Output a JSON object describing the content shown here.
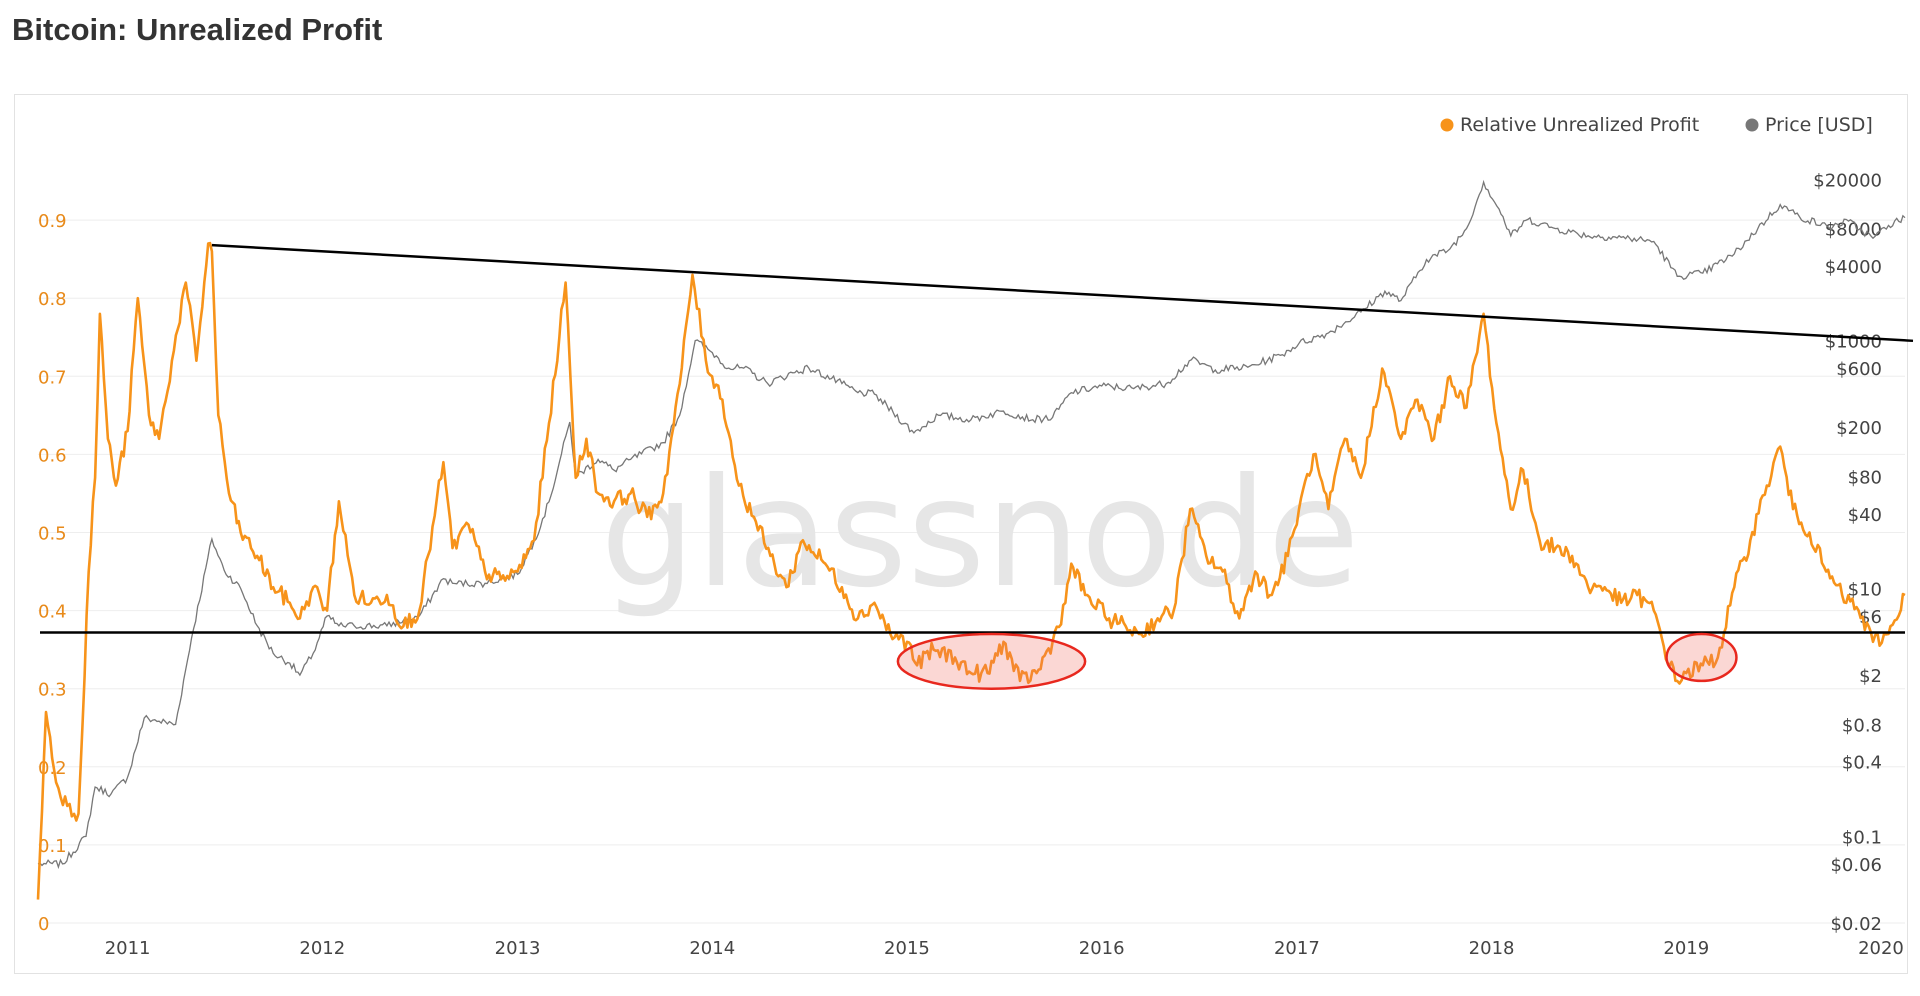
{
  "page": {
    "title": "Bitcoin: Unrealized Profit"
  },
  "watermark": "glassnode",
  "colors": {
    "profit": "#f7931a",
    "price": "#777777",
    "trend": "#000000",
    "highlight": "#e8281e"
  },
  "chart_data": {
    "type": "line",
    "title": "Bitcoin: Unrealized Profit",
    "legend_position": "top-right",
    "grid": true,
    "x_range": [
      "2010-07-17",
      "2020-02-15"
    ],
    "x_ticks": [
      "2011",
      "2012",
      "2013",
      "2014",
      "2015",
      "2016",
      "2017",
      "2018",
      "2019",
      "2020"
    ],
    "y_left": {
      "range": [
        0,
        1.0
      ],
      "ticks": [
        "0",
        "0.1",
        "0.2",
        "0.3",
        "0.4",
        "0.5",
        "0.6",
        "0.7",
        "0.8",
        "0.9"
      ]
    },
    "y_right": {
      "scale": "log",
      "range": [
        0.02,
        40000
      ],
      "ticks": [
        "$0.02",
        "$0.06",
        "$0.1",
        "$0.4",
        "$0.8",
        "$2",
        "$6",
        "$10",
        "$40",
        "$80",
        "$200",
        "$600",
        "$1000",
        "$4000",
        "$8000",
        "$20000"
      ]
    },
    "series": [
      {
        "name": "Relative Unrealized Profit",
        "axis": "left",
        "x": [
          "2010-07-17",
          "2010-08-01",
          "2010-08-20",
          "2010-09-10",
          "2010-10-01",
          "2010-10-20",
          "2010-11-01",
          "2010-11-10",
          "2010-11-25",
          "2010-12-10",
          "2011-01-01",
          "2011-01-20",
          "2011-02-10",
          "2011-03-01",
          "2011-03-25",
          "2011-04-20",
          "2011-05-10",
          "2011-06-01",
          "2011-06-08",
          "2011-06-20",
          "2011-07-10",
          "2011-08-01",
          "2011-09-01",
          "2011-10-01",
          "2011-11-01",
          "2011-11-20",
          "2011-12-15",
          "2012-01-10",
          "2012-02-01",
          "2012-03-01",
          "2012-04-01",
          "2012-05-01",
          "2012-06-01",
          "2012-07-01",
          "2012-08-15",
          "2012-09-01",
          "2012-10-01",
          "2012-11-01",
          "2012-12-01",
          "2013-01-01",
          "2013-02-01",
          "2013-03-01",
          "2013-04-01",
          "2013-04-10",
          "2013-04-20",
          "2013-05-10",
          "2013-06-01",
          "2013-07-01",
          "2013-08-01",
          "2013-09-01",
          "2013-10-01",
          "2013-11-01",
          "2013-11-25",
          "2013-12-20",
          "2014-01-20",
          "2014-02-20",
          "2014-03-20",
          "2014-04-20",
          "2014-05-20",
          "2014-06-20",
          "2014-08-01",
          "2014-09-01",
          "2014-10-01",
          "2014-11-01",
          "2014-12-01",
          "2015-01-01",
          "2015-01-20",
          "2015-02-20",
          "2015-04-01",
          "2015-05-01",
          "2015-06-01",
          "2015-07-01",
          "2015-08-01",
          "2015-09-01",
          "2015-10-01",
          "2015-10-25",
          "2015-11-05",
          "2015-12-01",
          "2016-01-15",
          "2016-02-15",
          "2016-03-15",
          "2016-04-15",
          "2016-05-15",
          "2016-06-15",
          "2016-07-15",
          "2016-08-15",
          "2016-09-15",
          "2016-10-15",
          "2016-11-15",
          "2016-12-15",
          "2017-01-05",
          "2017-02-01",
          "2017-03-01",
          "2017-04-01",
          "2017-05-01",
          "2017-06-10",
          "2017-07-15",
          "2017-08-15",
          "2017-09-15",
          "2017-10-15",
          "2017-11-15",
          "2017-12-17",
          "2018-01-10",
          "2018-02-06",
          "2018-03-01",
          "2018-04-01",
          "2018-05-01",
          "2018-06-01",
          "2018-07-01",
          "2018-08-01",
          "2018-09-01",
          "2018-10-01",
          "2018-11-01",
          "2018-12-01",
          "2018-12-15",
          "2019-01-01",
          "2019-02-01",
          "2019-03-01",
          "2019-04-01",
          "2019-05-01",
          "2019-06-01",
          "2019-06-26",
          "2019-07-20",
          "2019-08-20",
          "2019-09-20",
          "2019-10-20",
          "2019-11-20",
          "2019-12-17",
          "2020-01-15",
          "2020-02-15"
        ],
        "values": [
          0.03,
          0.27,
          0.18,
          0.15,
          0.14,
          0.45,
          0.57,
          0.78,
          0.62,
          0.56,
          0.63,
          0.8,
          0.65,
          0.62,
          0.72,
          0.82,
          0.72,
          0.87,
          0.86,
          0.65,
          0.55,
          0.5,
          0.47,
          0.43,
          0.41,
          0.39,
          0.43,
          0.4,
          0.54,
          0.42,
          0.41,
          0.42,
          0.38,
          0.4,
          0.59,
          0.48,
          0.51,
          0.45,
          0.44,
          0.45,
          0.49,
          0.64,
          0.82,
          0.7,
          0.57,
          0.62,
          0.55,
          0.54,
          0.55,
          0.52,
          0.55,
          0.69,
          0.83,
          0.72,
          0.67,
          0.56,
          0.52,
          0.47,
          0.43,
          0.49,
          0.46,
          0.43,
          0.39,
          0.41,
          0.37,
          0.36,
          0.33,
          0.35,
          0.34,
          0.32,
          0.32,
          0.36,
          0.31,
          0.32,
          0.36,
          0.41,
          0.46,
          0.42,
          0.39,
          0.38,
          0.37,
          0.39,
          0.4,
          0.53,
          0.47,
          0.45,
          0.39,
          0.45,
          0.42,
          0.47,
          0.53,
          0.6,
          0.53,
          0.62,
          0.57,
          0.71,
          0.62,
          0.67,
          0.62,
          0.7,
          0.66,
          0.78,
          0.64,
          0.53,
          0.58,
          0.49,
          0.48,
          0.47,
          0.43,
          0.43,
          0.41,
          0.42,
          0.4,
          0.33,
          0.31,
          0.32,
          0.33,
          0.34,
          0.43,
          0.49,
          0.56,
          0.61,
          0.53,
          0.5,
          0.45,
          0.42,
          0.4,
          0.36,
          0.37,
          0.42
        ],
        "color": "#f7931a"
      },
      {
        "name": "Price [USD]",
        "axis": "right",
        "x": [
          "2010-07-17",
          "2010-08-01",
          "2010-09-01",
          "2010-10-15",
          "2010-11-01",
          "2010-12-01",
          "2011-01-01",
          "2011-02-01",
          "2011-03-01",
          "2011-04-01",
          "2011-05-01",
          "2011-06-08",
          "2011-07-01",
          "2011-08-01",
          "2011-09-01",
          "2011-10-01",
          "2011-11-01",
          "2011-11-20",
          "2011-12-15",
          "2012-01-10",
          "2012-02-01",
          "2012-03-01",
          "2012-05-01",
          "2012-07-01",
          "2012-08-15",
          "2012-09-01",
          "2012-11-01",
          "2013-01-01",
          "2013-02-01",
          "2013-03-01",
          "2013-04-09",
          "2013-04-20",
          "2013-06-01",
          "2013-07-01",
          "2013-08-01",
          "2013-10-01",
          "2013-11-01",
          "2013-11-30",
          "2014-01-01",
          "2014-02-01",
          "2014-03-01",
          "2014-04-15",
          "2014-06-01",
          "2014-07-01",
          "2014-09-01",
          "2014-10-01",
          "2014-11-01",
          "2015-01-14",
          "2015-03-01",
          "2015-05-01",
          "2015-07-01",
          "2015-08-25",
          "2015-10-01",
          "2015-11-05",
          "2016-01-01",
          "2016-03-01",
          "2016-05-01",
          "2016-06-17",
          "2016-08-01",
          "2016-10-01",
          "2016-12-01",
          "2017-01-05",
          "2017-03-01",
          "2017-05-01",
          "2017-06-15",
          "2017-07-15",
          "2017-09-01",
          "2017-10-15",
          "2017-11-15",
          "2017-12-17",
          "2018-01-15",
          "2018-02-06",
          "2018-03-10",
          "2018-05-01",
          "2018-07-01",
          "2018-09-01",
          "2018-11-01",
          "2018-12-15",
          "2019-02-01",
          "2019-04-01",
          "2019-05-15",
          "2019-06-26",
          "2019-08-01",
          "2019-09-25",
          "2019-11-01",
          "2019-12-17",
          "2020-01-15",
          "2020-02-15"
        ],
        "values": [
          0.06,
          0.06,
          0.06,
          0.1,
          0.25,
          0.22,
          0.3,
          0.9,
          0.85,
          0.8,
          4,
          25,
          14,
          10,
          5,
          3,
          2.5,
          2,
          3,
          6,
          5,
          5,
          5,
          6,
          12,
          11,
          11,
          13,
          24,
          50,
          220,
          80,
          110,
          90,
          110,
          150,
          250,
          1000,
          800,
          600,
          600,
          450,
          550,
          600,
          450,
          380,
          370,
          180,
          250,
          230,
          270,
          230,
          240,
          380,
          430,
          410,
          450,
          700,
          580,
          610,
          760,
          950,
          1150,
          1700,
          2500,
          2100,
          4500,
          5500,
          8000,
          19000,
          11500,
          7000,
          9500,
          8000,
          7000,
          6800,
          6300,
          3300,
          3500,
          5000,
          8000,
          12500,
          10000,
          8200,
          9200,
          6700,
          8500,
          9800
        ],
        "color": "#777777"
      }
    ],
    "annotations": [
      {
        "type": "trend_line",
        "x": [
          "2011-06-08",
          "2020-02-15"
        ],
        "values": [
          0.868,
          0.748
        ],
        "axis": "left"
      },
      {
        "type": "horizontal_line",
        "value": 0.372,
        "axis": "left"
      },
      {
        "type": "highlight_ellipse",
        "x": [
          "2014-12-15",
          "2015-12-01"
        ],
        "values": [
          0.3,
          0.37
        ]
      },
      {
        "type": "highlight_ellipse",
        "x": [
          "2018-11-25",
          "2019-04-05"
        ],
        "values": [
          0.31,
          0.37
        ]
      }
    ]
  }
}
